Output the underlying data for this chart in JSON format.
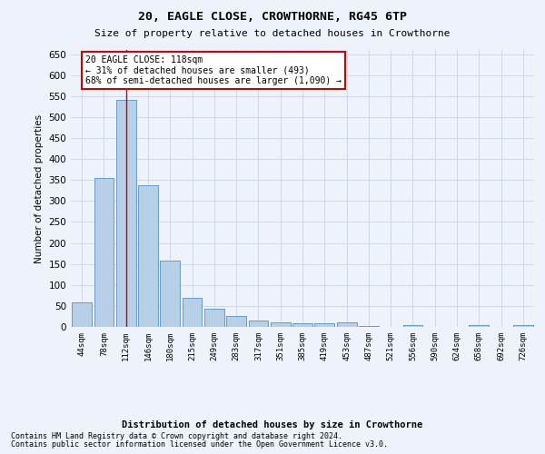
{
  "title": "20, EAGLE CLOSE, CROWTHORNE, RG45 6TP",
  "subtitle": "Size of property relative to detached houses in Crowthorne",
  "xlabel": "Distribution of detached houses by size in Crowthorne",
  "ylabel": "Number of detached properties",
  "categories": [
    "44sqm",
    "78sqm",
    "112sqm",
    "146sqm",
    "180sqm",
    "215sqm",
    "249sqm",
    "283sqm",
    "317sqm",
    "351sqm",
    "385sqm",
    "419sqm",
    "453sqm",
    "487sqm",
    "521sqm",
    "556sqm",
    "590sqm",
    "624sqm",
    "658sqm",
    "692sqm",
    "726sqm"
  ],
  "values": [
    58,
    355,
    540,
    338,
    157,
    70,
    43,
    25,
    16,
    10,
    8,
    8,
    10,
    3,
    0,
    5,
    0,
    0,
    5,
    0,
    5
  ],
  "bar_color": "#b8cfe8",
  "bar_edge_color": "#6699cc",
  "vline_x_index": 2,
  "vline_color": "#cc0000",
  "annotation_text": "20 EAGLE CLOSE: 118sqm\n← 31% of detached houses are smaller (493)\n68% of semi-detached houses are larger (1,090) →",
  "annotation_box_color": "#ffffff",
  "annotation_box_edge": "#cc0000",
  "ylim": [
    0,
    660
  ],
  "yticks": [
    0,
    50,
    100,
    150,
    200,
    250,
    300,
    350,
    400,
    450,
    500,
    550,
    600,
    650
  ],
  "grid_color": "#d0d8e8",
  "footnote1": "Contains HM Land Registry data © Crown copyright and database right 2024.",
  "footnote2": "Contains public sector information licensed under the Open Government Licence v3.0.",
  "bg_color": "#eef2fb"
}
